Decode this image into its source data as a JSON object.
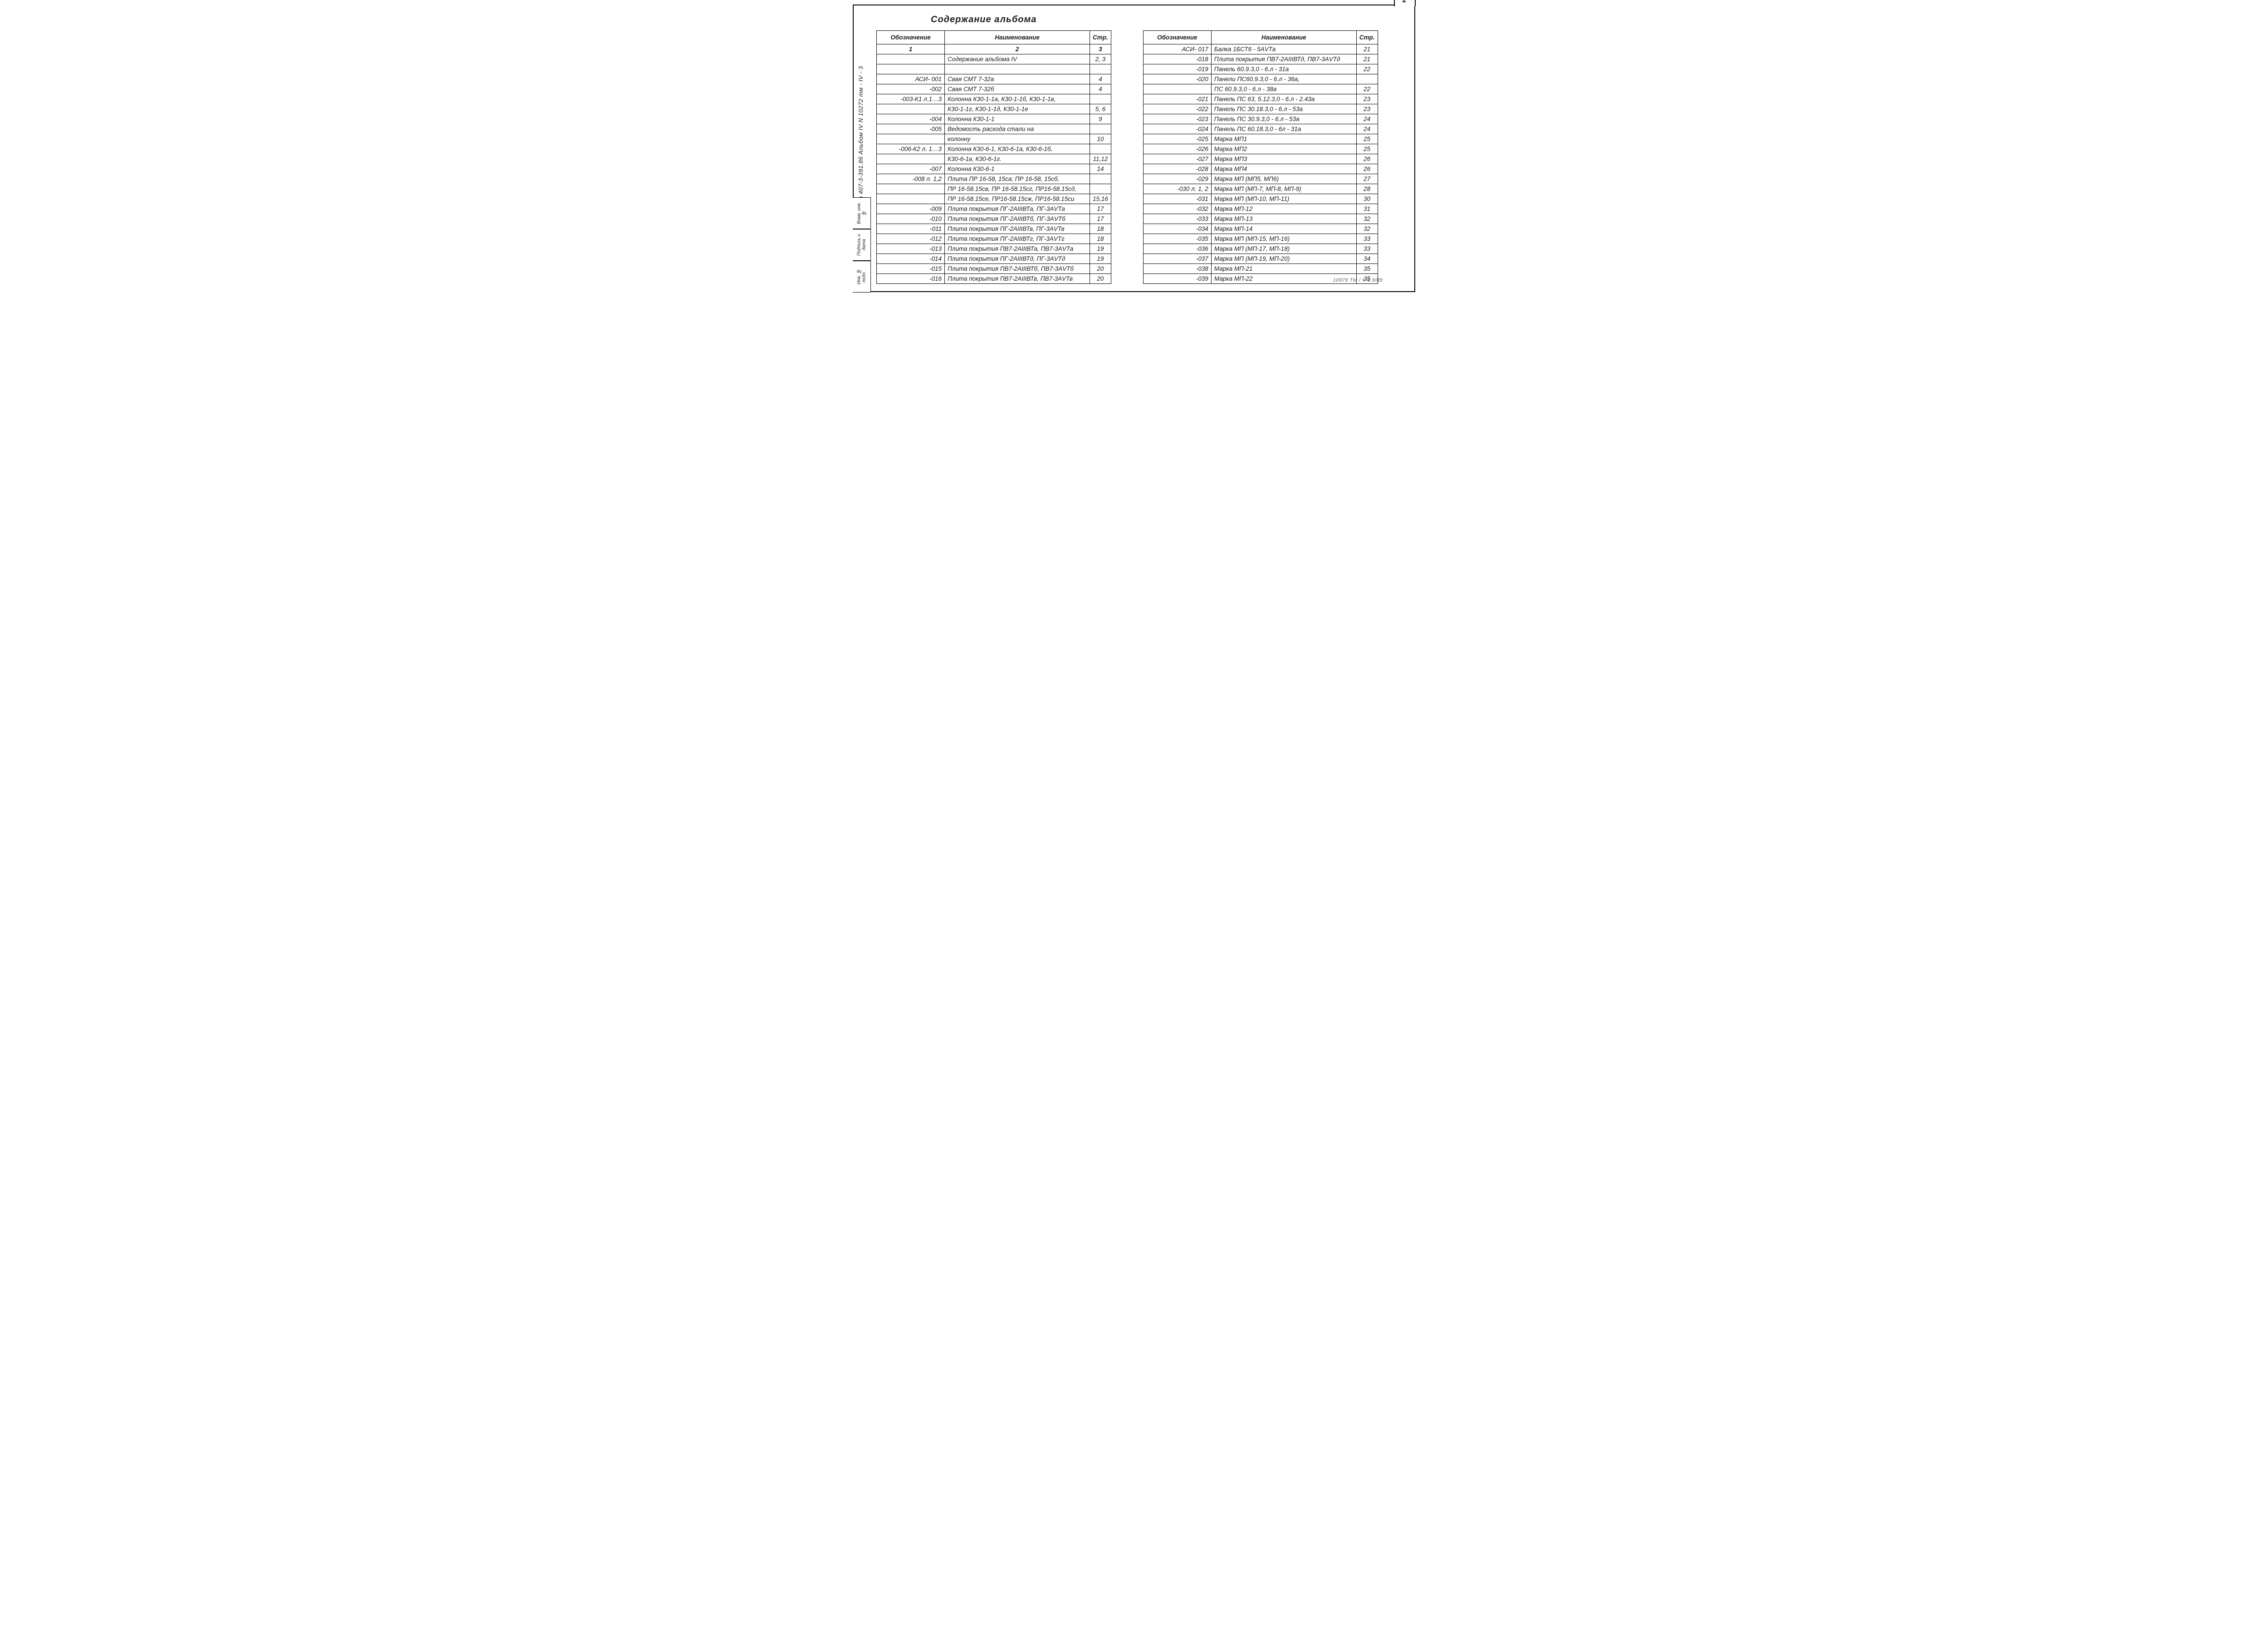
{
  "page_number": "2",
  "title": "Содержание   альбома",
  "side_project_text": "Типовой   проект 407-3-391.86 Альбом  IV   N 10272 тм - IV - 3",
  "side_boxes": [
    "Инв. № подл.",
    "Подпись и дата",
    "Взам. инв. №"
  ],
  "headers": {
    "design": "Обозначение",
    "name": "Наименование",
    "page": "Стр."
  },
  "subheaders": {
    "design": "1",
    "name": "2",
    "page": "3"
  },
  "annotation": "10979 ТМ / V 8.9/89",
  "left_rows": [
    {
      "d": "",
      "n": "Содержание альбома  IV",
      "p": "2, 3"
    },
    {
      "d": "",
      "n": "",
      "p": ""
    },
    {
      "d": "АСИ- 001",
      "n": "Свая  СМТ  7-32а",
      "p": "4"
    },
    {
      "d": "-002",
      "n": "Свая  СМТ  7-32б",
      "p": "4"
    },
    {
      "d": "-003-К1 л.1…3",
      "n": "Колонна   К30-1-1а, К30-1-1б, К30-1-1в,",
      "p": ""
    },
    {
      "d": "",
      "n": "К30-1-1г, К30-1-1д, К30-1-1е",
      "p": "5, 6"
    },
    {
      "d": "-004",
      "n": "Колонна  К30-1-1",
      "p": "9"
    },
    {
      "d": "-005",
      "n": "Ведомость расхода   стали  на",
      "p": ""
    },
    {
      "d": "",
      "n": "колонну",
      "p": "10"
    },
    {
      "d": "-006-К2 л. 1…3",
      "n": "Колонна   К30-6-1, К30-6-1а, К30-6-1б,",
      "p": ""
    },
    {
      "d": "",
      "n": "К30-6-1в,  К30-6-1г.",
      "p": "11,12"
    },
    {
      "d": "-007",
      "n": "Колонна  К30-6-1",
      "p": "14"
    },
    {
      "d": "-008 л. 1,2",
      "n": "Плита  ПР 16-58, 15са;  ПР 16-58, 15сб,",
      "p": ""
    },
    {
      "d": "",
      "n": "ПР 16-58.15св,  ПР 16-58.15сг,  ПР16-58.15сд,",
      "p": ""
    },
    {
      "d": "",
      "n": "ПР 16-58.15се,  ПР16-58.15сж, ПР16-58.15си",
      "p": "15,16"
    },
    {
      "d": "-009",
      "n": "Плита  покрытия ПГ-2АIIIВТа, ПГ-3АVТа",
      "p": "17"
    },
    {
      "d": "-010",
      "n": "Плита покрытия ПГ-2АIIIВТб, ПГ-3АVТб",
      "p": "17"
    },
    {
      "d": "-011",
      "n": "Плита покрытия ПГ-2АIIIВТв, ПГ-3АVТв",
      "p": "18"
    },
    {
      "d": "-012",
      "n": "Плита  покрытия ПГ-2АIIIВТг, ПГ-3АVТг",
      "p": "18"
    },
    {
      "d": "-013",
      "n": "Плита  покрытия ПВ7-2АIIIВТа, ПВ7-3АVТа",
      "p": "19"
    },
    {
      "d": "-014",
      "n": "Плита покрытия ПГ-2АIIIВТд, ПГ-3АVТд",
      "p": "19"
    },
    {
      "d": "-015",
      "n": "Плита покрытия ПВ7-2АIIIВТб, ПВ7-3АVТб",
      "p": "20"
    },
    {
      "d": "-016",
      "n": "Плита покрытия ПВ7-2АIIIВТв, ПВ7-3АVТв",
      "p": "20"
    }
  ],
  "right_rows": [
    {
      "d": "АСИ- 017",
      "n": "Балка  1БСТ6 - 5АVТа",
      "p": "21"
    },
    {
      "d": "-018",
      "n": "Плита покрытия ПВ7-2АIIIВТд, ПВ7-3АVТд",
      "p": "21"
    },
    {
      "d": "-019",
      "n": "Панель 60.9.3,0 - 6.л - 31а",
      "p": "22"
    },
    {
      "d": "-020",
      "n": "Панели ПС60.9.3,0 - 6.л - 36а,",
      "p": ""
    },
    {
      "d": "",
      "n": "ПС 60.9.3,0 - 6.л - 38а",
      "p": "22"
    },
    {
      "d": "-021",
      "n": "Панель  ПС 63, 5.12.3,0 - 6.л - 2.43а",
      "p": "23"
    },
    {
      "d": "-022",
      "n": "Панель  ПС 30.18.3,0 - 6.л - 53а",
      "p": "23"
    },
    {
      "d": "-023",
      "n": "Панель  ПС 30.9.3,0 - 6.л - 53а",
      "p": "24"
    },
    {
      "d": "-024",
      "n": "Панель  ПС 60.18.3,0 - 6л - 31а",
      "p": "24"
    },
    {
      "d": "-025",
      "n": "Марка  МП1",
      "p": "25"
    },
    {
      "d": "-026",
      "n": "Марка  МП2",
      "p": "25"
    },
    {
      "d": "-027",
      "n": "Марка  МП3",
      "p": "26"
    },
    {
      "d": "-028",
      "n": "Марка  МП4",
      "p": "26"
    },
    {
      "d": "-029",
      "n": "Марка МП (МП5, МП6)",
      "p": "27"
    },
    {
      "d": "-030 л. 1, 2",
      "n": "Марка МП (МП-7, МП-8, МП-9)",
      "p": "28"
    },
    {
      "d": "-031",
      "n": "Марка МП (МП-10, МП-11)",
      "p": "30"
    },
    {
      "d": "-032",
      "n": "Марка  МП-12",
      "p": "31"
    },
    {
      "d": "-033",
      "n": "Марка  МП-13",
      "p": "32"
    },
    {
      "d": "-034",
      "n": "Марка  МП-14",
      "p": "32"
    },
    {
      "d": "-035",
      "n": "Марка  МП (МП-15, МП-16)",
      "p": "33"
    },
    {
      "d": "-036",
      "n": "Марка  МП (МП-17, МП-18)",
      "p": "33"
    },
    {
      "d": "-037",
      "n": "Марка  МП (МП-19, МП-20)",
      "p": "34"
    },
    {
      "d": "-038",
      "n": "Марка  МП-21",
      "p": "35"
    },
    {
      "d": "-039",
      "n": "Марка  МП-22",
      "p": "35"
    }
  ]
}
